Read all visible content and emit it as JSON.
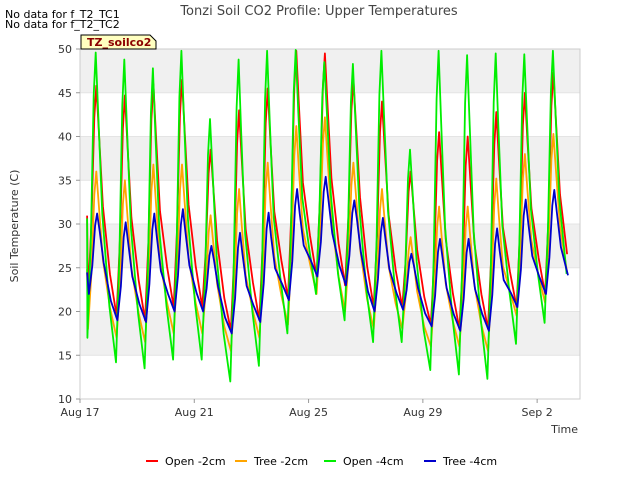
{
  "chart_data": {
    "type": "line",
    "title": "Tonzi Soil CO2 Profile: Upper Temperatures",
    "xlabel": "Time",
    "ylabel": "Soil Temperature (C)",
    "ylim": [
      10,
      50
    ],
    "yticks": [
      10,
      15,
      20,
      25,
      30,
      35,
      40,
      45,
      50
    ],
    "xlim_days": [
      17,
      34.5
    ],
    "xticks": [
      {
        "label": "Aug 17",
        "day": 17
      },
      {
        "label": "Aug 21",
        "day": 21
      },
      {
        "label": "Aug 25",
        "day": 25
      },
      {
        "label": "Aug 29",
        "day": 29
      },
      {
        "label": "Sep 2",
        "day": 33
      }
    ],
    "x_start_day": 17.25,
    "x_end_day": 34.3,
    "grid": "horizontal bands",
    "legend_position": "bottom",
    "notes": [
      "No data for f_T2_TC1",
      "No data for f_T2_TC2"
    ],
    "badge": "TZ_soilco2",
    "series": [
      {
        "name": "Open -2cm",
        "color": "#ff0000",
        "max": [
          45.8,
          44.7,
          46.0,
          46.5,
          38.5,
          43.0,
          45.5,
          49.8,
          49.5,
          46.5,
          44.0,
          36.0,
          40.5,
          40.0,
          42.8,
          45.0,
          47.3
        ],
        "min": [
          21.5,
          19.5,
          19.0,
          20.5,
          20.5,
          17.8,
          19.0,
          21.5,
          24.0,
          23.0,
          20.5,
          20.5,
          18.5,
          18.0,
          18.0,
          20.5,
          22.0
        ]
      },
      {
        "name": "Tree -2cm",
        "color": "#ffa500",
        "max": [
          36.0,
          35.0,
          36.8,
          36.8,
          31.0,
          34.0,
          37.0,
          41.2,
          42.2,
          37.0,
          34.0,
          28.5,
          32.0,
          32.0,
          35.2,
          38.0,
          40.3
        ],
        "min": [
          18.0,
          17.0,
          16.5,
          17.5,
          17.5,
          15.5,
          17.0,
          18.5,
          22.0,
          20.0,
          18.0,
          18.0,
          16.0,
          16.0,
          15.5,
          19.5,
          21.0
        ]
      },
      {
        "name": "Open -4cm",
        "color": "#00ee00",
        "max": [
          49.6,
          48.8,
          47.8,
          49.8,
          42.0,
          48.8,
          49.8,
          49.9,
          48.5,
          48.3,
          49.8,
          38.5,
          49.8,
          49.3,
          49.5,
          49.4,
          49.8
        ],
        "min": [
          17.0,
          14.2,
          13.5,
          14.5,
          14.5,
          12.0,
          13.8,
          17.5,
          22.0,
          19.0,
          16.5,
          16.5,
          13.3,
          12.8,
          12.3,
          16.3,
          18.7
        ]
      },
      {
        "name": "Tree -4cm",
        "color": "#0000cc",
        "max": [
          31.2,
          30.2,
          31.2,
          31.7,
          27.5,
          29.0,
          31.3,
          34.0,
          35.4,
          32.7,
          30.7,
          26.6,
          28.3,
          28.3,
          29.5,
          32.8,
          33.9
        ],
        "min": [
          22.0,
          19.0,
          18.8,
          20.0,
          20.0,
          17.5,
          18.8,
          21.3,
          24.0,
          23.0,
          20.0,
          20.2,
          18.3,
          17.8,
          17.8,
          20.5,
          22.0
        ]
      }
    ]
  }
}
